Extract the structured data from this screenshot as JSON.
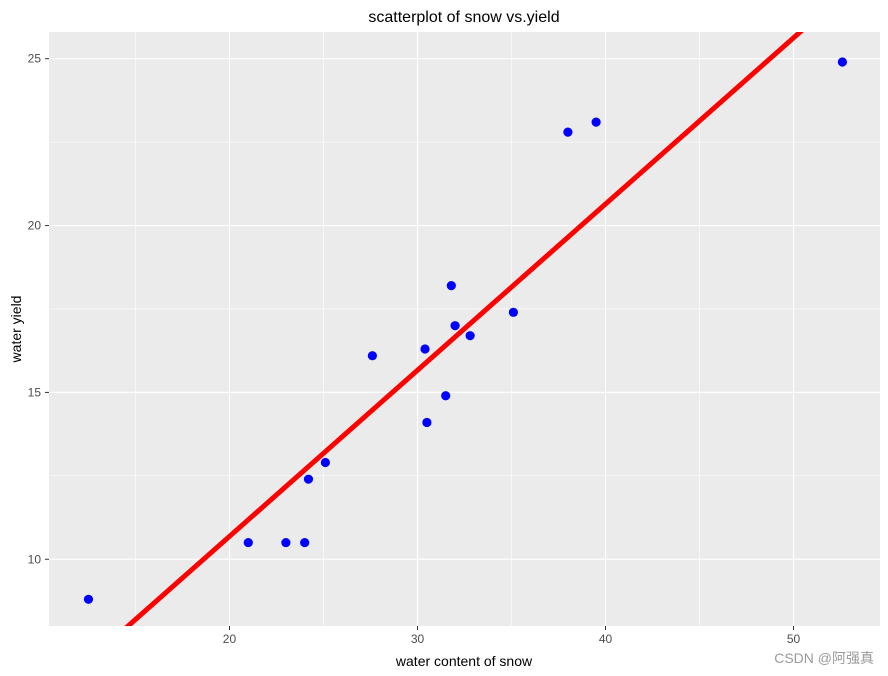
{
  "chart_data": {
    "type": "scatter",
    "title": "scatterplot of snow vs.yield",
    "xlabel": "water content of snow",
    "ylabel": "water yield",
    "xlim": [
      10.4,
      54.6
    ],
    "ylim": [
      8.0,
      25.8
    ],
    "xticks": [
      20,
      30,
      40,
      50
    ],
    "yticks": [
      10,
      15,
      20,
      25
    ],
    "grid": true,
    "colors": {
      "points": "#0000ff",
      "fit_line": "#ff0000",
      "panel": "#ebebeb",
      "grid": "#ffffff"
    },
    "points": [
      {
        "x": 12.5,
        "y": 8.8
      },
      {
        "x": 21.0,
        "y": 10.5
      },
      {
        "x": 23.0,
        "y": 10.5
      },
      {
        "x": 24.0,
        "y": 10.5
      },
      {
        "x": 24.2,
        "y": 12.4
      },
      {
        "x": 25.1,
        "y": 12.9
      },
      {
        "x": 27.6,
        "y": 16.1
      },
      {
        "x": 30.4,
        "y": 16.3
      },
      {
        "x": 30.5,
        "y": 14.1
      },
      {
        "x": 31.5,
        "y": 14.9
      },
      {
        "x": 31.8,
        "y": 18.2
      },
      {
        "x": 32.0,
        "y": 17.0
      },
      {
        "x": 32.8,
        "y": 16.7
      },
      {
        "x": 35.1,
        "y": 17.4
      },
      {
        "x": 38.0,
        "y": 22.8
      },
      {
        "x": 39.5,
        "y": 23.1
      },
      {
        "x": 52.6,
        "y": 24.9
      }
    ],
    "fit_line": {
      "intercept": 0.725,
      "slope": 0.498
    }
  },
  "watermark": "CSDN @阿强真"
}
